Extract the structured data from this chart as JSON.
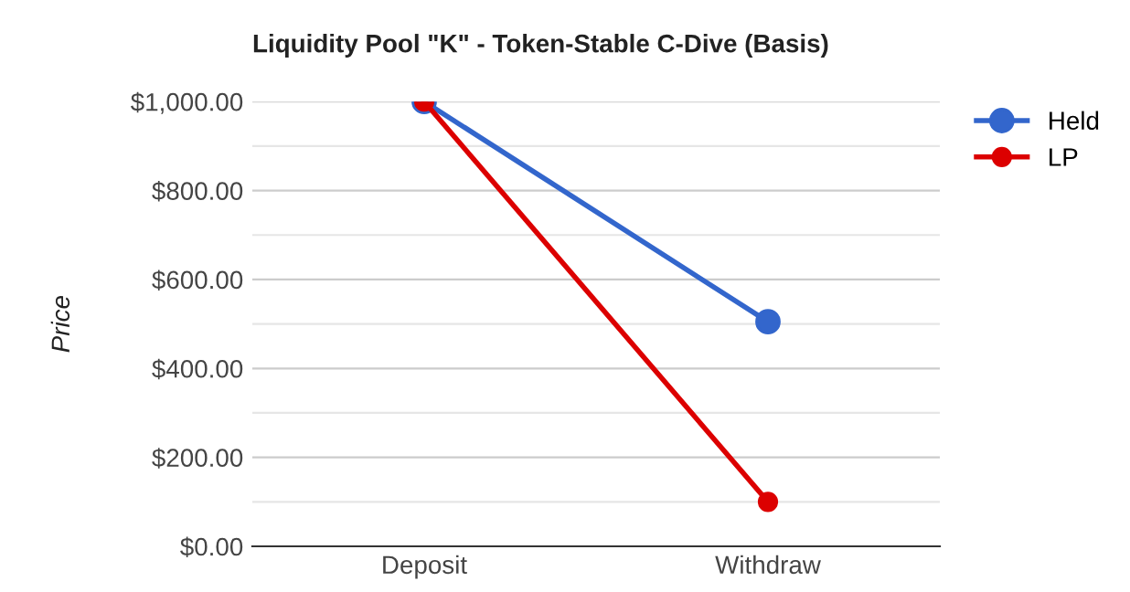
{
  "chart_data": {
    "type": "line",
    "title": "Liquidity Pool \"K\" - Token-Stable C-Dive (Basis)",
    "ylabel": "Price",
    "categories": [
      "Deposit",
      "Withdraw"
    ],
    "series": [
      {
        "name": "Held",
        "color": "#3366cc",
        "values": [
          1000,
          505
        ]
      },
      {
        "name": "LP",
        "color": "#dc0000",
        "values": [
          1000,
          100
        ]
      }
    ],
    "ylim": [
      0,
      1000
    ],
    "yticks": [
      {
        "value": 0,
        "label": "$0.00"
      },
      {
        "value": 100,
        "label": null
      },
      {
        "value": 200,
        "label": "$200.00"
      },
      {
        "value": 300,
        "label": null
      },
      {
        "value": 400,
        "label": "$400.00"
      },
      {
        "value": 500,
        "label": null
      },
      {
        "value": 600,
        "label": "$600.00"
      },
      {
        "value": 700,
        "label": null
      },
      {
        "value": 800,
        "label": "$800.00"
      },
      {
        "value": 900,
        "label": null
      },
      {
        "value": 1000,
        "label": "$1,000.00"
      }
    ],
    "grid": "y",
    "legend": "top right",
    "marker": "circle",
    "line_style": "solid"
  }
}
